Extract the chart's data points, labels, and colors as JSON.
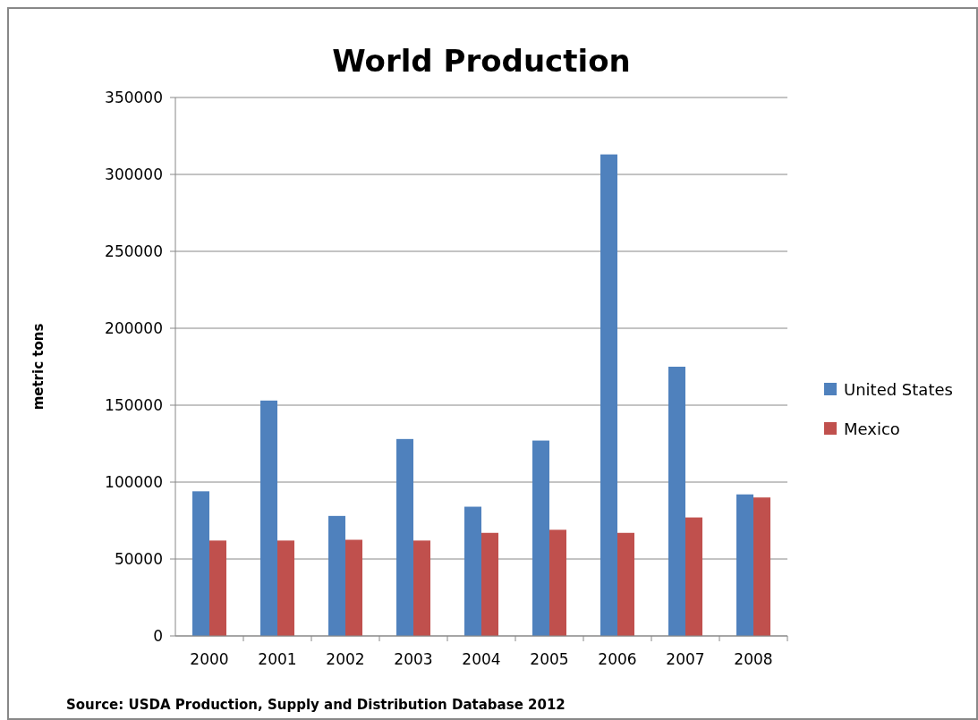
{
  "chart_data": {
    "type": "bar",
    "title": "World Production",
    "ylabel": "metric tons",
    "categories": [
      "2000",
      "2001",
      "2002",
      "2003",
      "2004",
      "2005",
      "2006",
      "2007",
      "2008"
    ],
    "series": [
      {
        "name": "United States",
        "color": "#4f81bd",
        "values": [
          94000,
          153000,
          78000,
          128000,
          84000,
          127000,
          313000,
          175000,
          92000
        ]
      },
      {
        "name": "Mexico",
        "color": "#c0504d",
        "values": [
          62000,
          62000,
          62500,
          62000,
          67000,
          69000,
          67000,
          77000,
          90000
        ]
      }
    ],
    "ylim": [
      0,
      350000
    ],
    "yticks": [
      0,
      50000,
      100000,
      150000,
      200000,
      250000,
      300000,
      350000
    ],
    "grid": "y",
    "legend": "right",
    "annotations": [
      "Source: USDA  Production, Supply and Distribution Database 2012"
    ]
  }
}
